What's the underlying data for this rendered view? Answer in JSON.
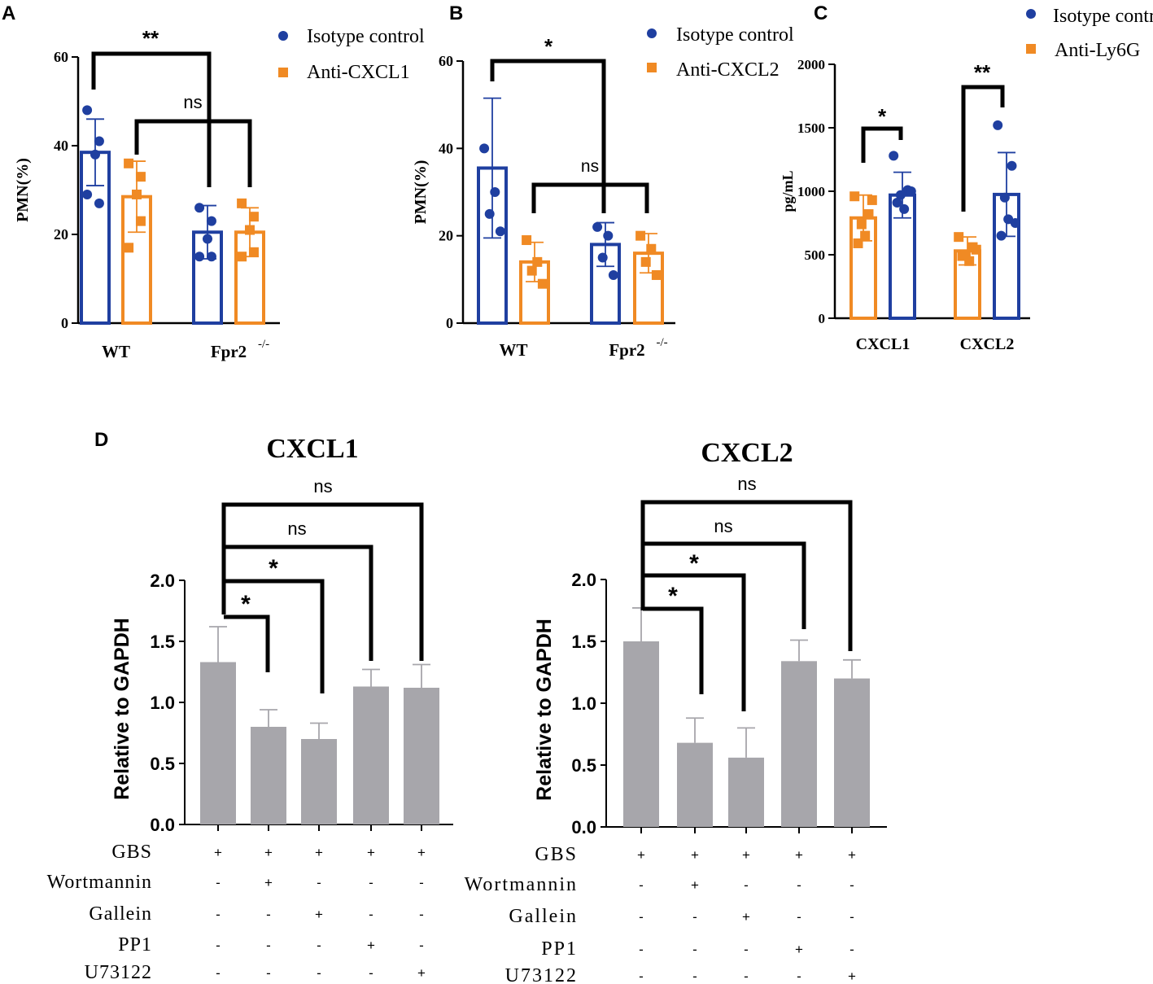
{
  "colors": {
    "blue": "#1f3fa0",
    "orange": "#f08a24",
    "gray": "#a7a6ab",
    "black": "#000000"
  },
  "chart_data": [
    {
      "panel": "A",
      "type": "bar",
      "categories": [
        "WT",
        "Fpr2"
      ],
      "category_superscript": [
        "",
        "-/-"
      ],
      "ylabel": "PMN(%)",
      "ylim": [
        0,
        60
      ],
      "yticks": [
        "0",
        "20",
        "40",
        "60"
      ],
      "series": [
        {
          "name": "Isotype control",
          "color": "blue",
          "marker": "circle",
          "values": [
            38.5,
            20.5
          ],
          "sd": [
            7.5,
            6.0
          ],
          "points": [
            [
              48,
              41,
              38,
              27,
              29
            ],
            [
              26,
              23,
              19,
              15,
              15
            ]
          ]
        },
        {
          "name": "Anti-CXCL1",
          "color": "orange",
          "marker": "square",
          "values": [
            28.5,
            20.5
          ],
          "sd": [
            8.0,
            5.5
          ],
          "points": [
            [
              36,
              33,
              29,
              23,
              17
            ],
            [
              27,
              24,
              21,
              16,
              15
            ]
          ]
        }
      ],
      "annotations": [
        "**",
        "ns"
      ]
    },
    {
      "panel": "B",
      "type": "bar",
      "categories": [
        "WT",
        "Fpr2"
      ],
      "category_superscript": [
        "",
        "-/-"
      ],
      "ylabel": "PMN(%)",
      "ylim": [
        0,
        60
      ],
      "yticks": [
        "0",
        "20",
        "40",
        "60"
      ],
      "series": [
        {
          "name": "Isotype control",
          "color": "blue",
          "marker": "circle",
          "values": [
            35.5,
            18.0
          ],
          "sd": [
            16.0,
            5.0
          ],
          "points": [
            [
              40,
              30,
              25,
              21
            ],
            [
              22,
              20,
              15,
              11
            ]
          ]
        },
        {
          "name": "Anti-CXCL2",
          "color": "orange",
          "marker": "square",
          "values": [
            14.0,
            16.0
          ],
          "sd": [
            4.5,
            4.5
          ],
          "points": [
            [
              19,
              14,
              12,
              9
            ],
            [
              20,
              17,
              14,
              11
            ]
          ]
        }
      ],
      "annotations": [
        "*",
        "ns"
      ]
    },
    {
      "panel": "C",
      "type": "bar",
      "categories": [
        "CXCL1",
        "CXCL2"
      ],
      "ylabel": "pg/mL",
      "ylim": [
        0,
        2000
      ],
      "yticks": [
        "0",
        "500",
        "1000",
        "1500",
        "2000"
      ],
      "series": [
        {
          "name": "Anti-Ly6G",
          "color": "orange",
          "marker": "square",
          "values": [
            790,
            530
          ],
          "sd": [
            180,
            110
          ],
          "points": [
            [
              960,
              820,
              740,
              650,
              590,
              930
            ],
            [
              640,
              560,
              500,
              450,
              490,
              540
            ]
          ]
        },
        {
          "name": "Isotype control",
          "color": "blue",
          "marker": "circle",
          "values": [
            970,
            975
          ],
          "sd": [
            180,
            330
          ],
          "points": [
            [
              1280,
              1010,
              970,
              860,
              910,
              1000
            ],
            [
              1520,
              1200,
              950,
              780,
              650,
              750
            ]
          ]
        }
      ],
      "legend": [
        "Isotype control",
        "Anti-Ly6G"
      ],
      "annotations": [
        "*",
        "**"
      ]
    },
    {
      "panel": "D",
      "type": "bar",
      "title": "CXCL1",
      "ylabel": "Relative to GAPDH",
      "ylim": [
        0,
        2.0
      ],
      "yticks": [
        "0.0",
        "0.5",
        "1.0",
        "1.5",
        "2.0"
      ],
      "values": [
        1.33,
        0.8,
        0.7,
        1.13,
        1.12
      ],
      "sd": [
        0.29,
        0.14,
        0.13,
        0.14,
        0.19
      ],
      "treatment_rows": [
        "GBS",
        "Wortmannin",
        "Gallein",
        "PP1",
        "U73122"
      ],
      "treatment_matrix": [
        [
          "+",
          "+",
          "+",
          "+",
          "+"
        ],
        [
          "-",
          "+",
          "-",
          "-",
          "-"
        ],
        [
          "-",
          "-",
          "+",
          "-",
          "-"
        ],
        [
          "-",
          "-",
          "-",
          "+",
          "-"
        ],
        [
          "-",
          "-",
          "-",
          "-",
          "+"
        ]
      ],
      "annotations": [
        "*",
        "*",
        "ns",
        "ns"
      ]
    },
    {
      "panel": "D",
      "type": "bar",
      "title": "CXCL2",
      "ylabel": "Relative to GAPDH",
      "ylim": [
        0,
        2.0
      ],
      "yticks": [
        "0.0",
        "0.5",
        "1.0",
        "1.5",
        "2.0"
      ],
      "values": [
        1.5,
        0.68,
        0.56,
        1.34,
        1.2
      ],
      "sd": [
        0.27,
        0.2,
        0.24,
        0.17,
        0.15
      ],
      "treatment_rows": [
        "GBS",
        "Wortmannin",
        "Gallein",
        "PP1",
        "U73122"
      ],
      "treatment_matrix": [
        [
          "+",
          "+",
          "+",
          "+",
          "+"
        ],
        [
          "-",
          "+",
          "-",
          "-",
          "-"
        ],
        [
          "-",
          "-",
          "+",
          "-",
          "-"
        ],
        [
          "-",
          "-",
          "-",
          "+",
          "-"
        ],
        [
          "-",
          "-",
          "-",
          "-",
          "+"
        ]
      ],
      "annotations": [
        "*",
        "*",
        "ns",
        "ns"
      ]
    }
  ]
}
